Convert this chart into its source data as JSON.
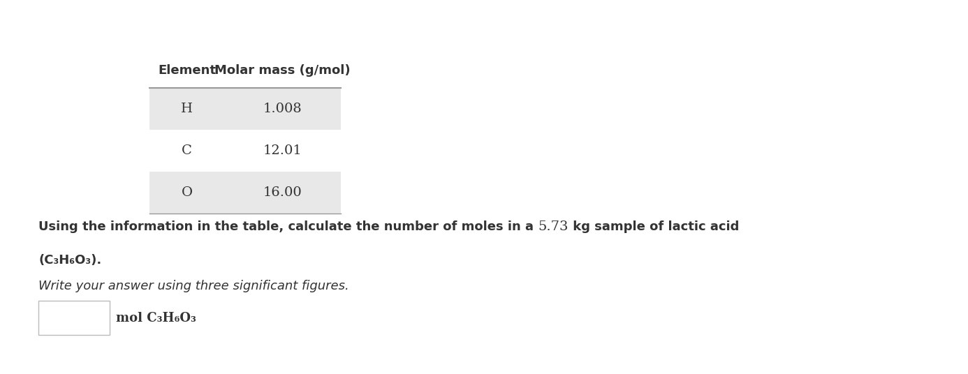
{
  "bg_color": "#ffffff",
  "col_headers": [
    "Element",
    "Molar mass (g/mol)"
  ],
  "rows": [
    [
      "H",
      "1.008"
    ],
    [
      "C",
      "12.01"
    ],
    [
      "O",
      "16.00"
    ]
  ],
  "row_bg_shaded": "#e8e8e8",
  "row_bg_white": "#ffffff",
  "header_sep_color": "#999999",
  "header_fontsize": 13,
  "cell_fontsize": 14,
  "text_color": "#333333",
  "question_part1": "Using the information in the table, calculate the number of moles in a ",
  "question_number": "5.73",
  "question_part2": " kg sample of lactic acid",
  "question_line2": "(C₃H₆O₃).",
  "question_italic": "Write your answer using three significant figures.",
  "answer_label": "mol C₃H₆O₃",
  "question_fontsize": 13,
  "italic_fontsize": 13,
  "answer_fontsize": 13
}
